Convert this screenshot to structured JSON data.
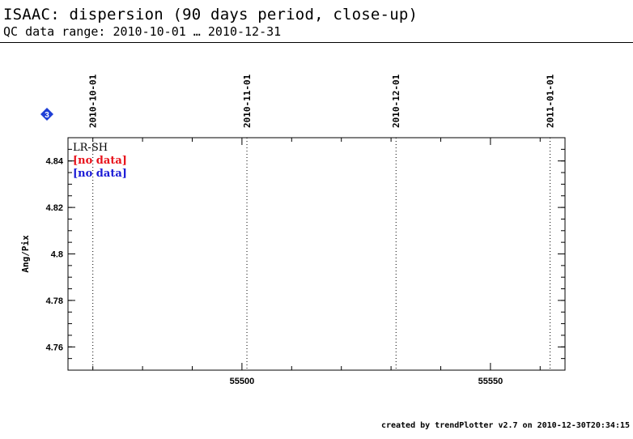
{
  "header": {
    "title": "ISAAC: dispersion (90 days period, close-up)",
    "subtitle": "QC data range: 2010-10-01 … 2010-12-31"
  },
  "footer": {
    "text": "created by trendPlotter v2.7 on 2010-12-30T20:34:15"
  },
  "badge": {
    "number": "3",
    "color": "#1f3fd6"
  },
  "chart_data": {
    "type": "scatter",
    "ylabel": "Ang/Pix",
    "xlim": [
      55465,
      55565
    ],
    "ylim": [
      4.75,
      4.85
    ],
    "x_major_ticks": [
      55500,
      55550
    ],
    "x_minor_ticks": [
      55470,
      55480,
      55490,
      55510,
      55520,
      55530,
      55540,
      55560
    ],
    "y_major_ticks": [
      {
        "value": 4.76,
        "label": "4.76"
      },
      {
        "value": 4.78,
        "label": "4.78"
      },
      {
        "value": 4.8,
        "label": "4.8"
      },
      {
        "value": 4.82,
        "label": "4.82"
      },
      {
        "value": 4.84,
        "label": "4.84"
      }
    ],
    "y_minor_step": 0.005,
    "date_markers": [
      {
        "x": 55470,
        "label": "2010-10-01"
      },
      {
        "x": 55501,
        "label": "2010-11-01"
      },
      {
        "x": 55531,
        "label": "2010-12-01"
      },
      {
        "x": 55562,
        "label": "2011-01-01"
      }
    ],
    "legend": {
      "placement": "top-left",
      "entries": [
        {
          "text": "LR-SH",
          "color": "#000000"
        },
        {
          "text": "[no data]",
          "color": "#e8121b"
        },
        {
          "text": "[no data]",
          "color": "#1b1bd6"
        }
      ]
    },
    "series": []
  }
}
